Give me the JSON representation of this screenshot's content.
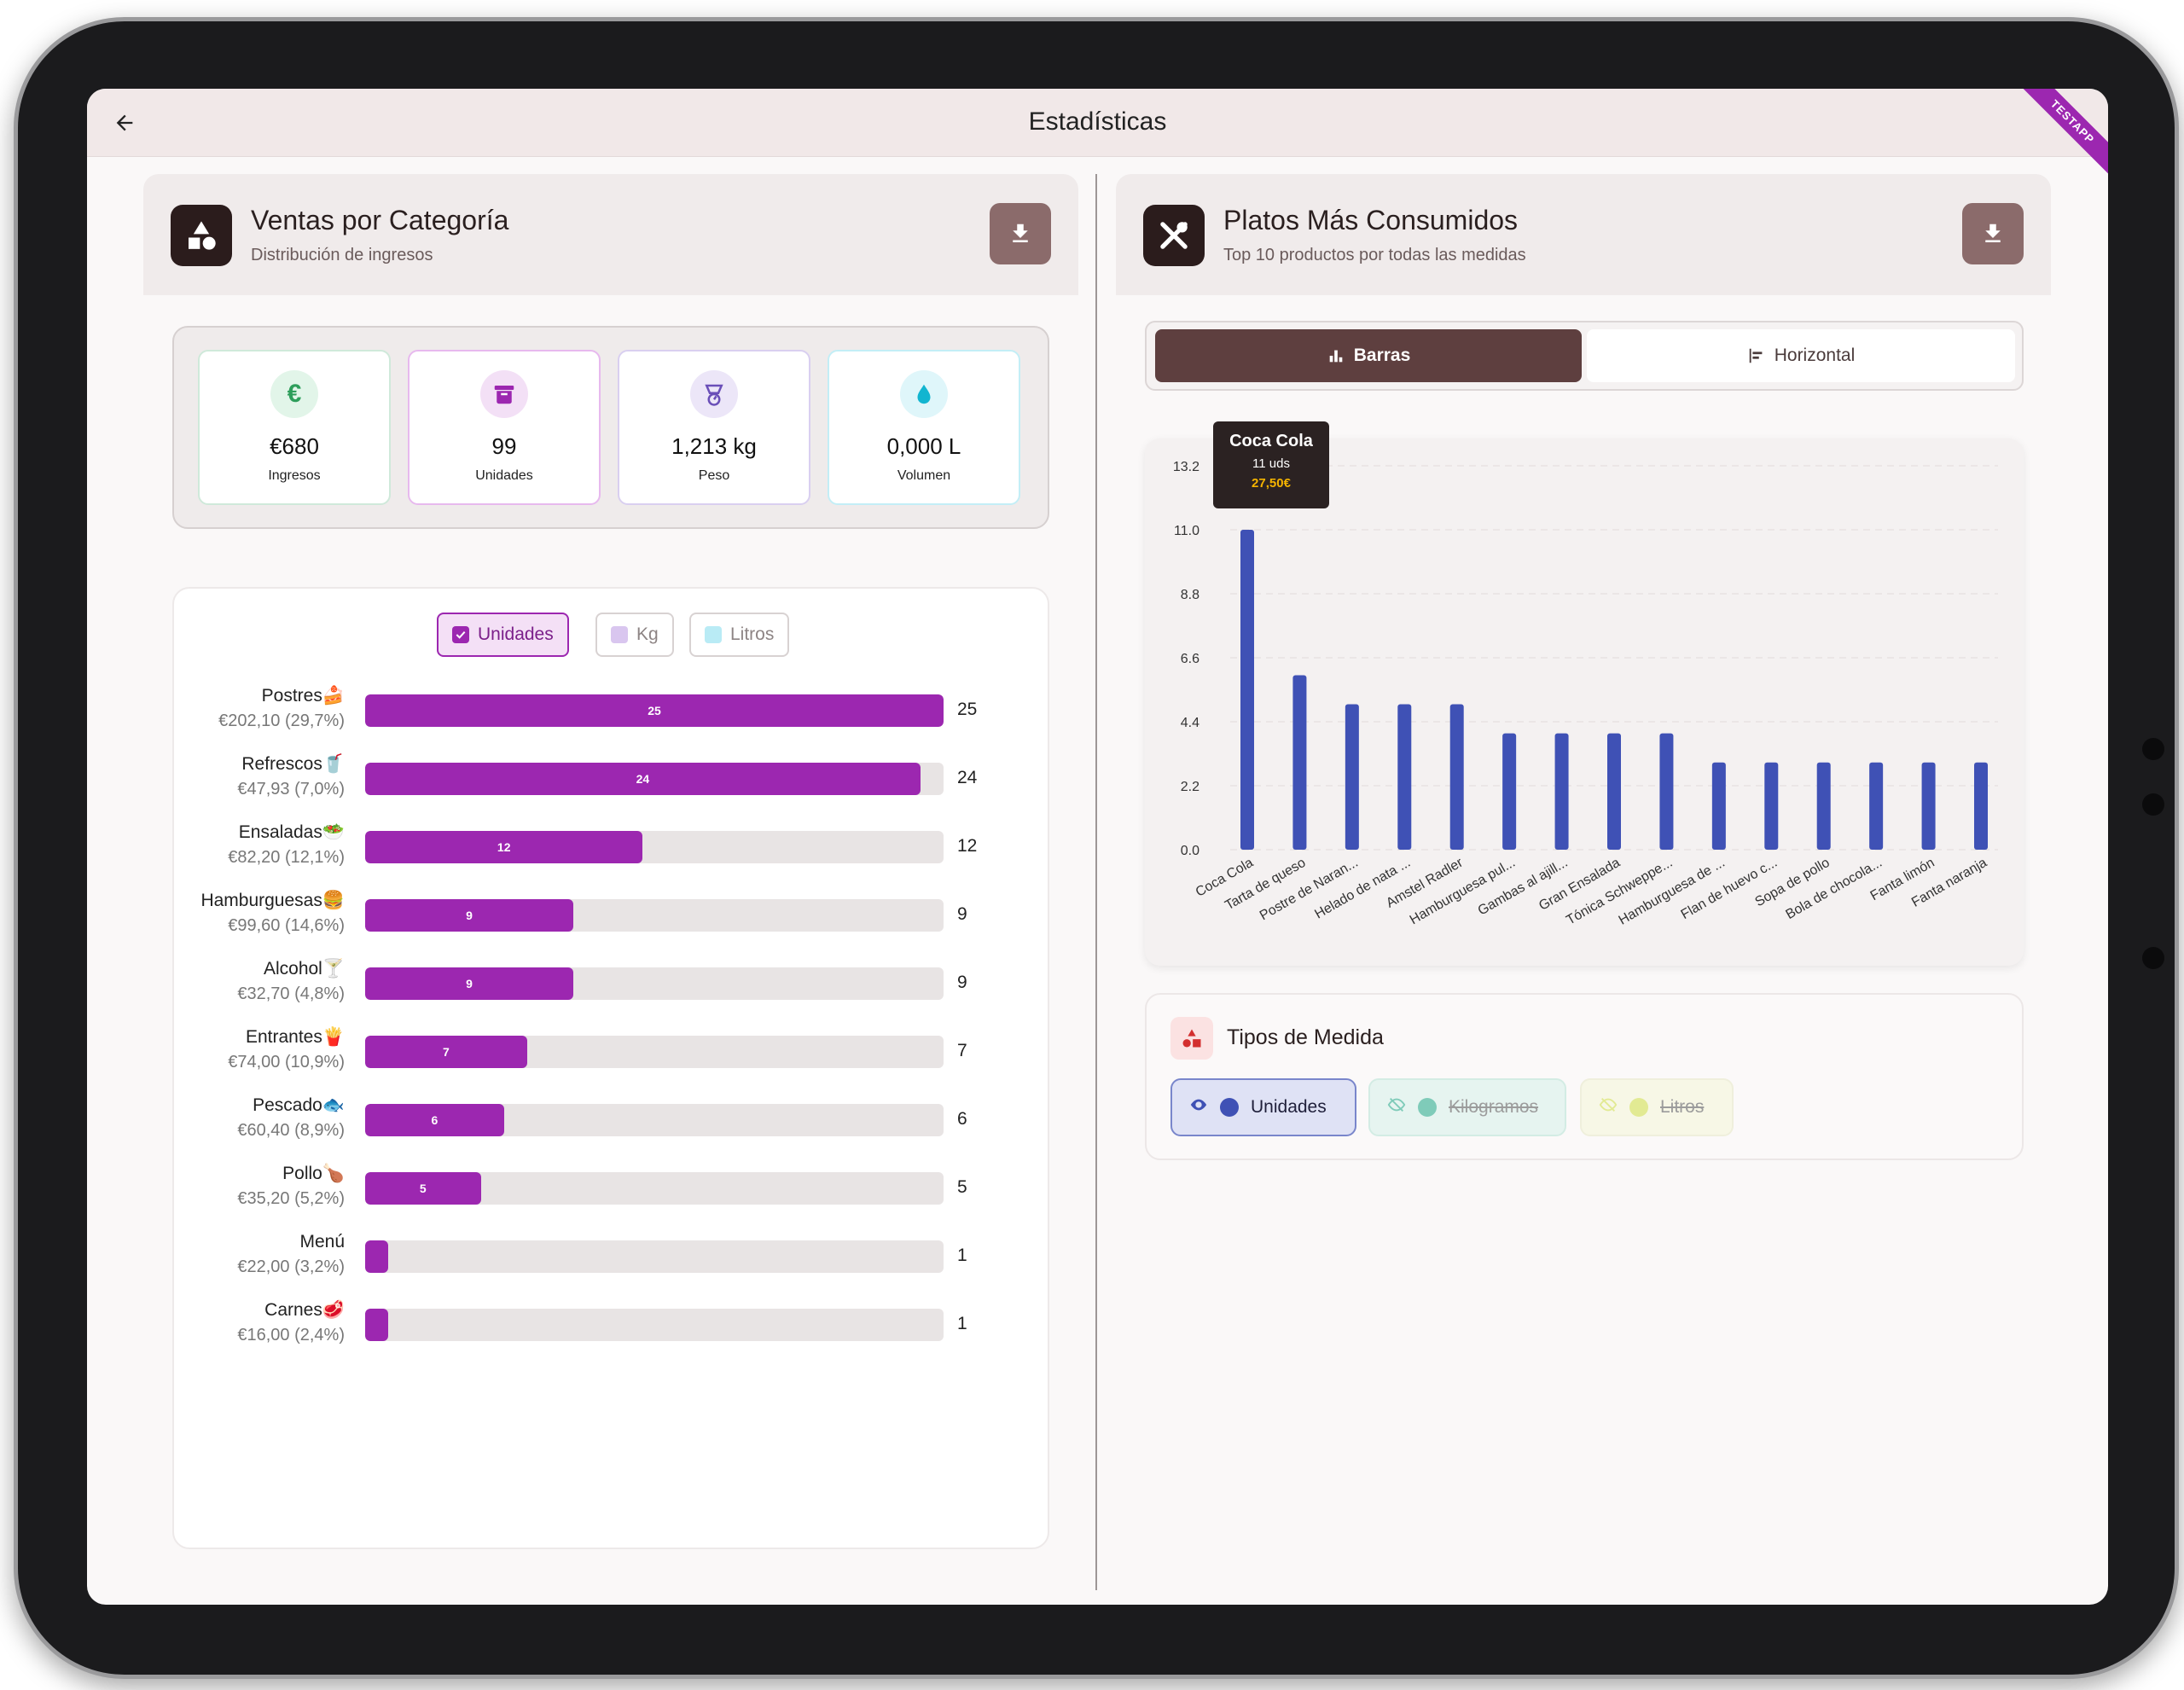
{
  "app": {
    "title": "Estadísticas",
    "ribbon": "TESTAPP"
  },
  "left_panel": {
    "title": "Ventas por Categoría",
    "subtitle": "Distribución de ingresos",
    "stats": [
      {
        "value": "€680",
        "label": "Ingresos",
        "icon": "euro-icon",
        "color": "#2e9e5b",
        "bg": "#e2f5e9",
        "border": "#cfe9da",
        "glyph": "€"
      },
      {
        "value": "99",
        "label": "Unidades",
        "icon": "archive-icon",
        "color": "#9c27b0",
        "bg": "#f3e0f6",
        "border": "#e7b9ee",
        "glyph": ""
      },
      {
        "value": "1,213 kg",
        "label": "Peso",
        "icon": "scale-icon",
        "color": "#6a4fb8",
        "bg": "#ece6f8",
        "border": "#d9cff0",
        "glyph": ""
      },
      {
        "value": "0,000 L",
        "label": "Volumen",
        "icon": "water-drop-icon",
        "color": "#12b5d0",
        "bg": "#dff6fa",
        "border": "#c3eef6",
        "glyph": ""
      }
    ],
    "filters": [
      {
        "label": "Unidades",
        "active": true,
        "color": "#9c27b0"
      },
      {
        "label": "Kg",
        "active": false,
        "color": "#d9c6ef"
      },
      {
        "label": "Litros",
        "active": false,
        "color": "#b9ebf5"
      }
    ],
    "categories": [
      {
        "name": "Postres🍰",
        "revenue": "€202,10 (29,7%)",
        "units": 25
      },
      {
        "name": "Refrescos🥤",
        "revenue": "€47,93 (7,0%)",
        "units": 24
      },
      {
        "name": "Ensaladas🥗",
        "revenue": "€82,20 (12,1%)",
        "units": 12
      },
      {
        "name": "Hamburguesas🍔",
        "revenue": "€99,60 (14,6%)",
        "units": 9
      },
      {
        "name": "Alcohol🍸",
        "revenue": "€32,70 (4,8%)",
        "units": 9
      },
      {
        "name": "Entrantes🍟",
        "revenue": "€74,00 (10,9%)",
        "units": 7
      },
      {
        "name": "Pescado🐟",
        "revenue": "€60,40 (8,9%)",
        "units": 6
      },
      {
        "name": "Pollo🍗",
        "revenue": "€35,20 (5,2%)",
        "units": 5
      },
      {
        "name": "Menú",
        "revenue": "€22,00 (3,2%)",
        "units": 1
      },
      {
        "name": "Carnes🥩",
        "revenue": "€16,00 (2,4%)",
        "units": 1
      }
    ],
    "max_units": 25
  },
  "right_panel": {
    "title": "Platos Más Consumidos",
    "subtitle": "Top 10 productos por todas las medidas",
    "toggle": {
      "bars": "Barras",
      "horizontal": "Horizontal"
    },
    "tooltip": {
      "name": "Coca Cola",
      "units": "11 uds",
      "price": "27,50€"
    },
    "medida": {
      "title": "Tipos de Medida",
      "chips": [
        {
          "label": "Unidades",
          "active": true,
          "color": "#3f51b5"
        },
        {
          "label": "Kilogramos",
          "active": false,
          "color": "#7fcbb9"
        },
        {
          "label": "Litros",
          "active": false,
          "color": "#e2ea93"
        }
      ]
    }
  },
  "chart_data": {
    "type": "bar",
    "categories": [
      "Coca Cola",
      "Tarta de queso",
      "Postre de Naran...",
      "Helado de nata ...",
      "Amstel Radler",
      "Hamburguesa pul...",
      "Gambas al ajill...",
      "Gran Ensalada",
      "Tónica Schweppe...",
      "Hamburguesa de ...",
      "Flan de huevo c...",
      "Sopa de pollo",
      "Bola de chocola...",
      "Fanta limón",
      "Fanta naranja"
    ],
    "values": [
      11,
      6,
      5,
      5,
      5,
      4,
      4,
      4,
      4,
      3,
      3,
      3,
      3,
      3,
      3
    ],
    "yticks": [
      "0.0",
      "2.2",
      "4.4",
      "6.6",
      "8.8",
      "11.0",
      "13.2"
    ],
    "ylim": [
      0,
      13.2
    ],
    "color": "#3f51b5",
    "grid": true
  }
}
